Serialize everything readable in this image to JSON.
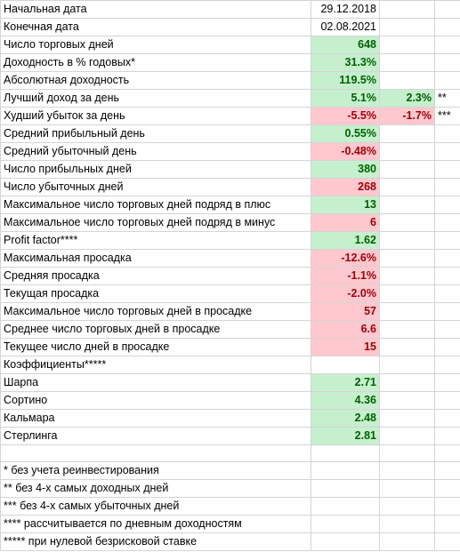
{
  "sheet": {
    "rows": [
      {
        "label": "Начальная дата",
        "value": "29.12.2018",
        "style": "plain",
        "extra": "",
        "extra_style": "",
        "mark": ""
      },
      {
        "label": "Конечная дата",
        "value": "02.08.2021",
        "style": "plain",
        "extra": "",
        "extra_style": "",
        "mark": ""
      },
      {
        "label": "Число торговых дней",
        "value": "648",
        "style": "green",
        "extra": "",
        "extra_style": "",
        "mark": ""
      },
      {
        "label": "Доходность в % годовых*",
        "value": "31.3%",
        "style": "green",
        "extra": "",
        "extra_style": "",
        "mark": ""
      },
      {
        "label": "Абсолютная доходность",
        "value": "119.5%",
        "style": "green",
        "extra": "",
        "extra_style": "",
        "mark": ""
      },
      {
        "label": "Лучший доход за день",
        "value": "5.1%",
        "style": "green",
        "extra": "2.3%",
        "extra_style": "green",
        "mark": "**"
      },
      {
        "label": "Худший убыток за день",
        "value": "-5.5%",
        "style": "red",
        "extra": "-1.7%",
        "extra_style": "red",
        "mark": "***"
      },
      {
        "label": "Средний прибыльный день",
        "value": "0.55%",
        "style": "green",
        "extra": "",
        "extra_style": "",
        "mark": ""
      },
      {
        "label": "Средний убыточный день",
        "value": "-0.48%",
        "style": "red",
        "extra": "",
        "extra_style": "",
        "mark": ""
      },
      {
        "label": "Число прибыльных дней",
        "value": "380",
        "style": "green",
        "extra": "",
        "extra_style": "",
        "mark": ""
      },
      {
        "label": "Число убыточных дней",
        "value": "268",
        "style": "red",
        "extra": "",
        "extra_style": "",
        "mark": ""
      },
      {
        "label": "Максимальное число  торговых дней подряд в плюс",
        "value": "13",
        "style": "green",
        "extra": "",
        "extra_style": "",
        "mark": ""
      },
      {
        "label": "Максимальное число торговых дней подряд в минус",
        "value": "6",
        "style": "red",
        "extra": "",
        "extra_style": "",
        "mark": ""
      },
      {
        "label": "Profit factor****",
        "value": "1.62",
        "style": "green",
        "extra": "",
        "extra_style": "",
        "mark": ""
      },
      {
        "label": "Максимальная просадка",
        "value": "-12.6%",
        "style": "red",
        "extra": "",
        "extra_style": "",
        "mark": ""
      },
      {
        "label": "Средняя просадка",
        "value": "-1.1%",
        "style": "red",
        "extra": "",
        "extra_style": "",
        "mark": ""
      },
      {
        "label": "Текущая просадка",
        "value": "-2.0%",
        "style": "red",
        "extra": "",
        "extra_style": "",
        "mark": ""
      },
      {
        "label": "Максимальное число торговых дней в просадке",
        "value": "57",
        "style": "red",
        "extra": "",
        "extra_style": "",
        "mark": ""
      },
      {
        "label": "Среднее число торговых дней в просадке",
        "value": "6.6",
        "style": "red",
        "extra": "",
        "extra_style": "",
        "mark": ""
      },
      {
        "label": "Текущее число дней в просадке",
        "value": "15",
        "style": "red",
        "extra": "",
        "extra_style": "",
        "mark": ""
      },
      {
        "label": "Коэффициенты*****",
        "value": "",
        "style": "plain",
        "extra": "",
        "extra_style": "",
        "mark": ""
      },
      {
        "label": "Шарпа",
        "value": "2.71",
        "style": "green",
        "extra": "",
        "extra_style": "",
        "mark": ""
      },
      {
        "label": "Сортино",
        "value": "4.36",
        "style": "green",
        "extra": "",
        "extra_style": "",
        "mark": ""
      },
      {
        "label": "Кальмара",
        "value": "2.48",
        "style": "green",
        "extra": "",
        "extra_style": "",
        "mark": ""
      },
      {
        "label": "Стерлинга",
        "value": "2.81",
        "style": "green",
        "extra": "",
        "extra_style": "",
        "mark": ""
      },
      {
        "label": "",
        "value": "",
        "style": "plain",
        "extra": "",
        "extra_style": "",
        "mark": ""
      }
    ],
    "notes": [
      "* без учета реинвестирования",
      "** без 4-х самых доходных дней",
      "*** без 4-х самых убыточных дней",
      "**** рассчитывается по дневным доходностям",
      "***** при нулевой безрисковой ставке"
    ],
    "colors": {
      "green_fill": "#c6efce",
      "green_text": "#006100",
      "red_fill": "#ffc7ce",
      "red_text": "#9c0006",
      "gridline": "#d4d4d4"
    }
  }
}
